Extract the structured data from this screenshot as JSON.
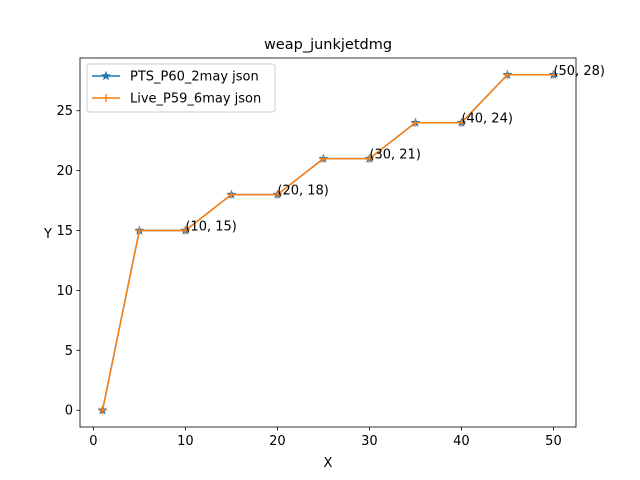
{
  "chart_data": {
    "type": "line",
    "title": "weap_junkjetdmg",
    "xlabel": "X",
    "ylabel": "Y",
    "xlim": [
      -1.45,
      52.45
    ],
    "ylim": [
      -1.4,
      29.4
    ],
    "xticks": [
      0,
      10,
      20,
      30,
      40,
      50
    ],
    "yticks": [
      0,
      5,
      10,
      15,
      20,
      25
    ],
    "grid": false,
    "legend_position": "upper-left",
    "series": [
      {
        "name": "PTS_P60_2may json",
        "color": "#1f77b4",
        "marker": "star",
        "x": [
          1,
          5,
          10,
          15,
          20,
          25,
          30,
          35,
          40,
          45,
          50
        ],
        "y": [
          0,
          15,
          15,
          18,
          18,
          21,
          21,
          24,
          24,
          28,
          28
        ]
      },
      {
        "name": "Live_P59_6may json",
        "color": "#ff7f0e",
        "marker": "plus",
        "x": [
          1,
          5,
          10,
          15,
          20,
          25,
          30,
          35,
          40,
          45,
          50
        ],
        "y": [
          0,
          15,
          15,
          18,
          18,
          21,
          21,
          24,
          24,
          28,
          28
        ]
      }
    ],
    "annotations": [
      {
        "x": 10,
        "y": 15,
        "text": "(10, 15)"
      },
      {
        "x": 20,
        "y": 18,
        "text": "(20, 18)"
      },
      {
        "x": 30,
        "y": 21,
        "text": "(30, 21)"
      },
      {
        "x": 40,
        "y": 24,
        "text": "(40, 24)"
      },
      {
        "x": 50,
        "y": 28,
        "text": "(50, 28)"
      }
    ]
  }
}
